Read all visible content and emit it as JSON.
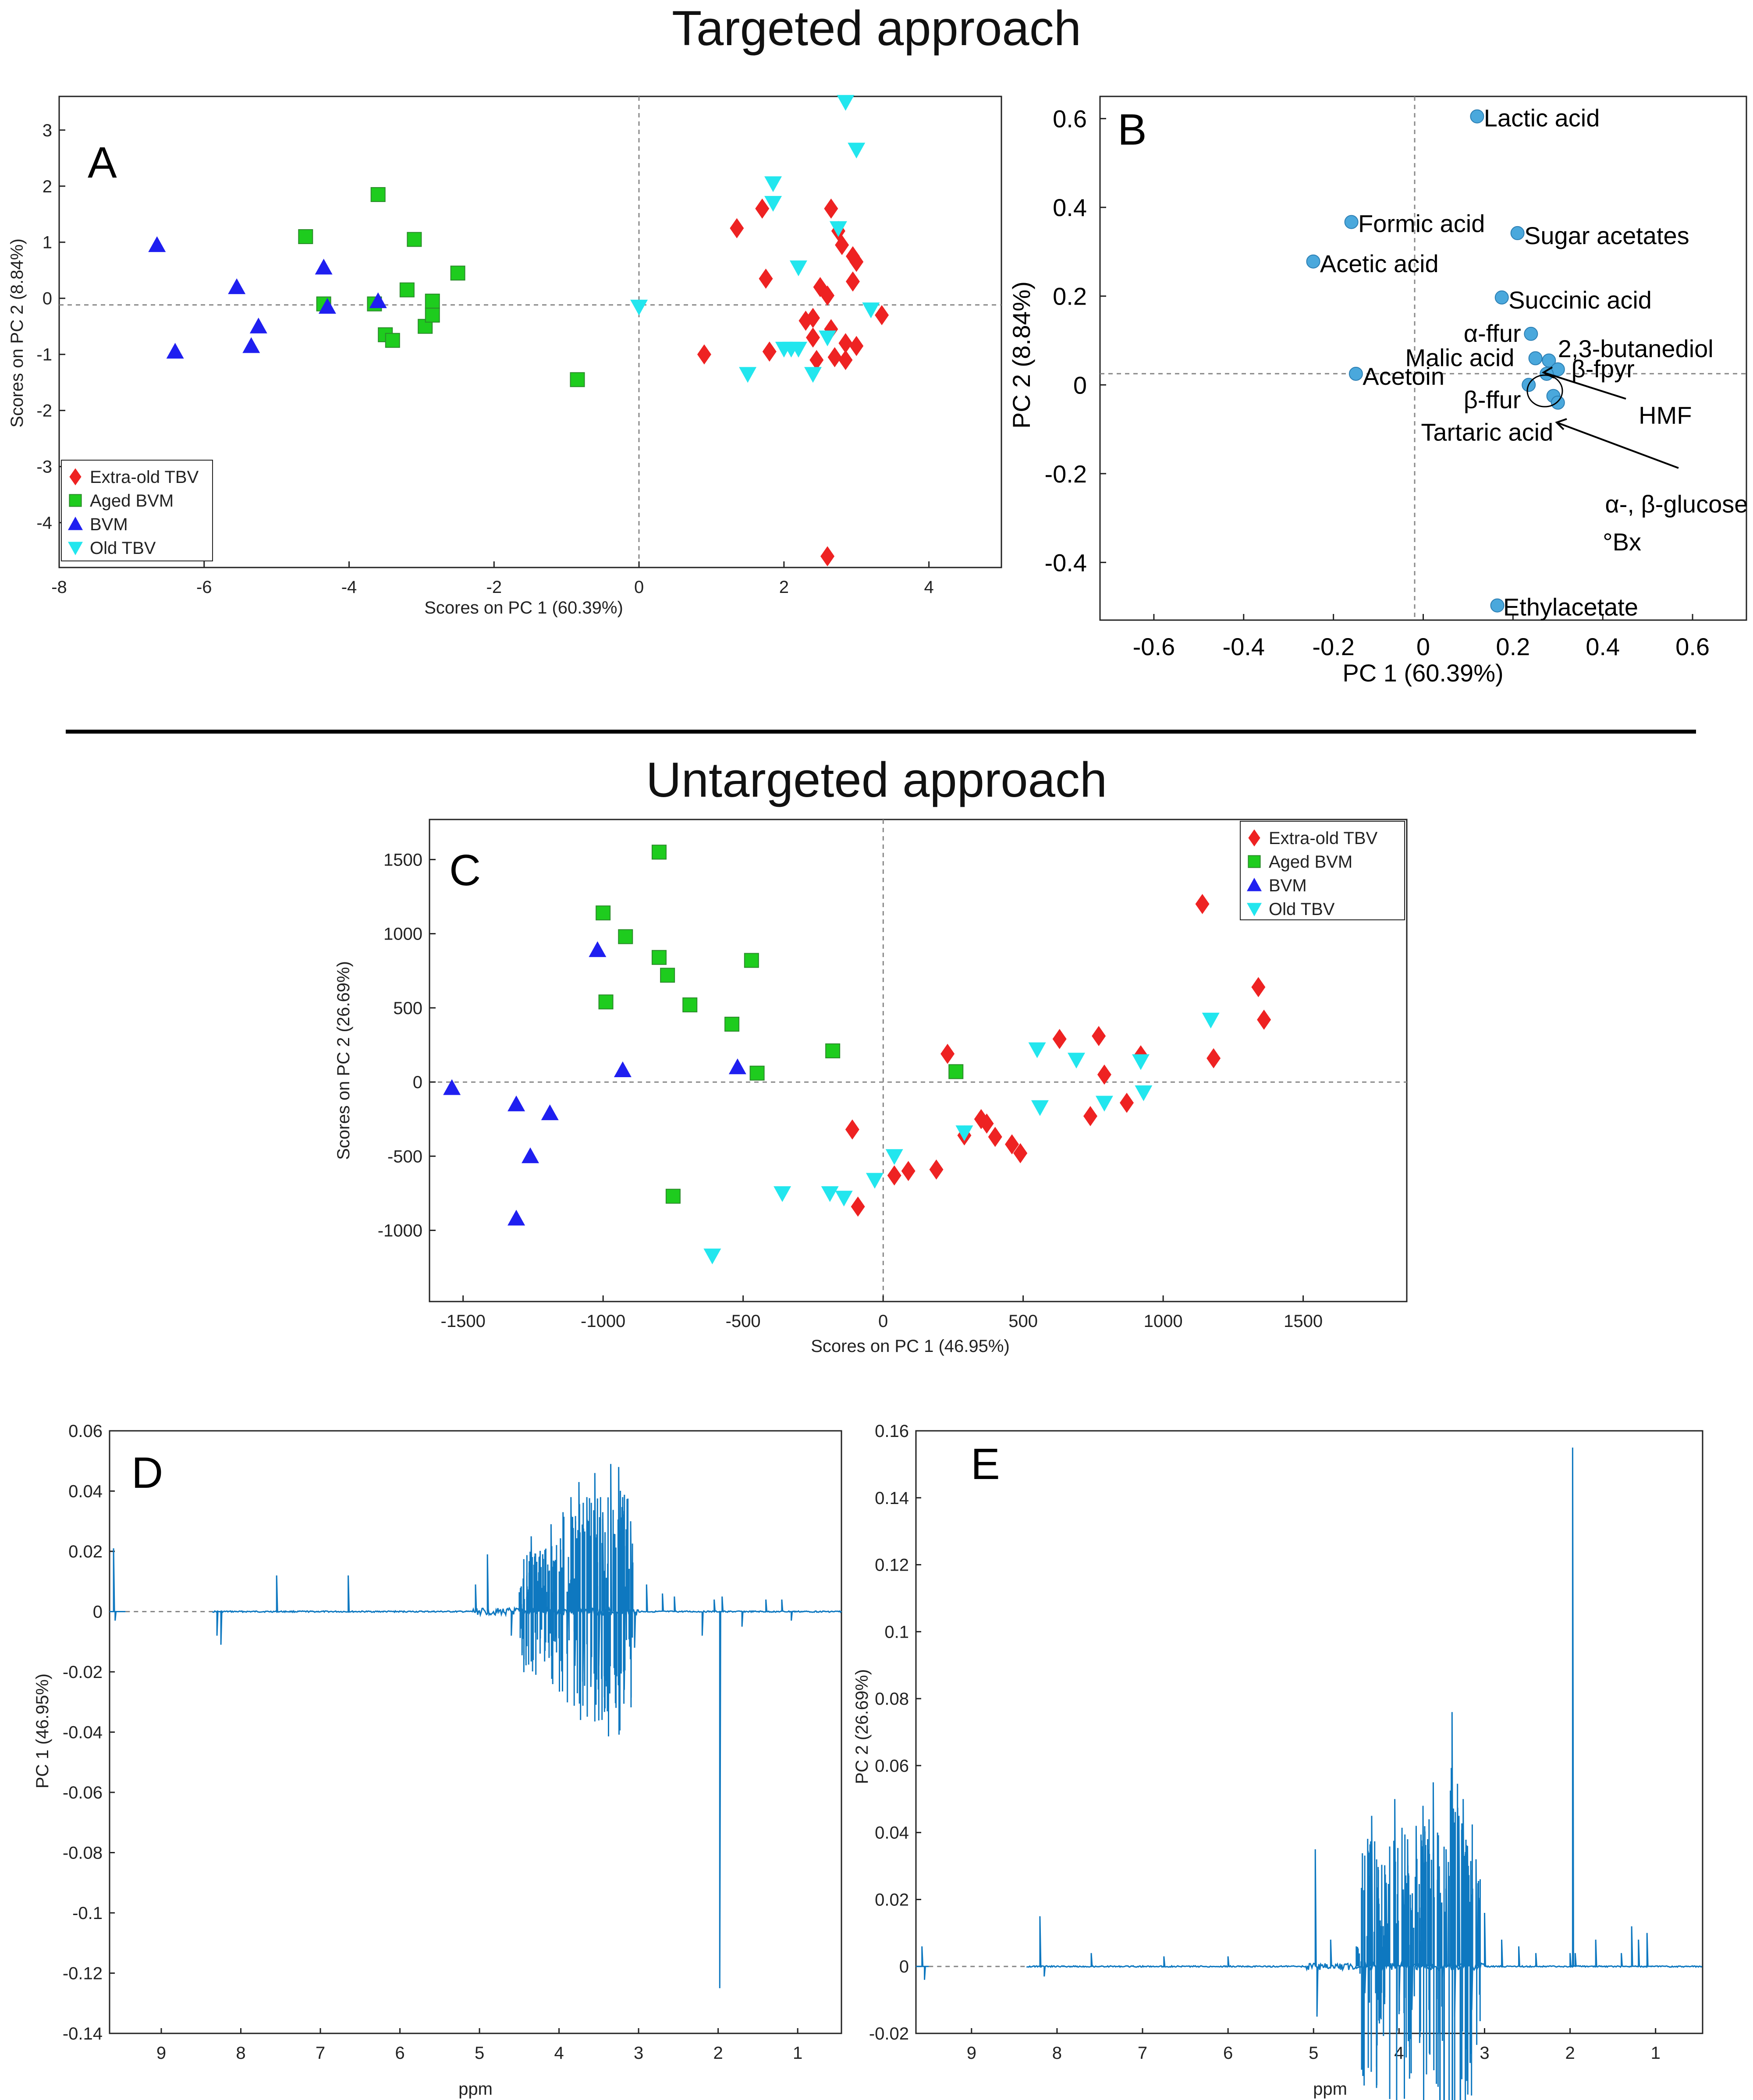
{
  "headings": {
    "targeted": "Targeted approach",
    "untargeted": "Untargeted approach"
  },
  "colors": {
    "extra_old_tbv": "#ee2222",
    "aged_bvm": "#1ecc1e",
    "bvm": "#1f1ff0",
    "old_tbv": "#22e6ee",
    "loading_dot": "#4aa8dc",
    "spectrum": "#0e78c0"
  },
  "chart_data": [
    {
      "id": "A",
      "type": "scatter",
      "panel_label": "A",
      "xlabel": "Scores on PC 1 (60.39%)",
      "ylabel": "Scores on PC 2 (8.84%)",
      "xlim": [
        -8,
        5
      ],
      "ylim": [
        -4.8,
        3.6
      ],
      "xticks": [
        -8,
        -6,
        -4,
        -2,
        0,
        2,
        4
      ],
      "yticks": [
        -4,
        -3,
        -2,
        -1,
        0,
        1,
        2,
        3
      ],
      "zero_lines": true,
      "legend_position": "bottom-left",
      "series": [
        {
          "name": "Extra-old TBV",
          "marker": "diamond",
          "color": "#ee2222",
          "points": [
            [
              0.9,
              -1.0
            ],
            [
              1.35,
              1.25
            ],
            [
              1.7,
              1.6
            ],
            [
              1.75,
              0.35
            ],
            [
              1.8,
              -0.95
            ],
            [
              2.3,
              -0.4
            ],
            [
              2.4,
              -0.35
            ],
            [
              2.4,
              -0.7
            ],
            [
              2.45,
              -1.1
            ],
            [
              2.5,
              0.2
            ],
            [
              2.6,
              0.05
            ],
            [
              2.65,
              1.6
            ],
            [
              2.65,
              -0.55
            ],
            [
              2.7,
              -1.05
            ],
            [
              2.75,
              1.2
            ],
            [
              2.8,
              0.95
            ],
            [
              2.85,
              -0.8
            ],
            [
              2.85,
              -1.1
            ],
            [
              2.95,
              0.3
            ],
            [
              2.95,
              0.75
            ],
            [
              3.0,
              -0.85
            ],
            [
              3.0,
              0.65
            ],
            [
              3.35,
              -0.3
            ],
            [
              2.6,
              -4.6
            ]
          ]
        },
        {
          "name": "Aged BVM",
          "marker": "square",
          "color": "#1ecc1e",
          "points": [
            [
              -4.6,
              1.1
            ],
            [
              -4.35,
              -0.1
            ],
            [
              -3.6,
              1.85
            ],
            [
              -3.65,
              -0.1
            ],
            [
              -3.5,
              -0.65
            ],
            [
              -3.4,
              -0.75
            ],
            [
              -3.2,
              0.15
            ],
            [
              -3.1,
              1.05
            ],
            [
              -2.95,
              -0.5
            ],
            [
              -2.85,
              -0.3
            ],
            [
              -2.85,
              -0.05
            ],
            [
              -2.5,
              0.45
            ],
            [
              -0.85,
              -1.45
            ]
          ]
        },
        {
          "name": "BVM",
          "marker": "triangle-up",
          "color": "#1f1ff0",
          "points": [
            [
              -6.65,
              0.95
            ],
            [
              -6.4,
              -0.95
            ],
            [
              -5.55,
              0.2
            ],
            [
              -5.35,
              -0.85
            ],
            [
              -5.25,
              -0.5
            ],
            [
              -4.35,
              0.55
            ],
            [
              -4.3,
              -0.15
            ],
            [
              -3.6,
              -0.05
            ]
          ]
        },
        {
          "name": "Old TBV",
          "marker": "triangle-down",
          "color": "#22e6ee",
          "points": [
            [
              0.0,
              -0.15
            ],
            [
              1.5,
              -1.35
            ],
            [
              1.85,
              2.05
            ],
            [
              1.85,
              1.7
            ],
            [
              2.0,
              -0.9
            ],
            [
              2.1,
              -0.9
            ],
            [
              2.2,
              0.55
            ],
            [
              2.2,
              -0.9
            ],
            [
              2.4,
              -1.35
            ],
            [
              2.6,
              -0.7
            ],
            [
              2.75,
              1.25
            ],
            [
              2.85,
              3.5
            ],
            [
              3.0,
              2.65
            ],
            [
              3.2,
              -0.2
            ]
          ]
        }
      ]
    },
    {
      "id": "B",
      "type": "scatter",
      "panel_label": "B",
      "xlabel": "PC 1 (60.39%)",
      "ylabel": "PC 2 (8.84%)",
      "xlim": [
        -0.72,
        0.72
      ],
      "ylim": [
        -0.53,
        0.65
      ],
      "xticks": [
        -0.6,
        -0.4,
        -0.2,
        0,
        0.2,
        0.4,
        0.6
      ],
      "yticks": [
        -0.4,
        -0.2,
        0,
        0.2,
        0.4,
        0.6
      ],
      "zero_lines": true,
      "points": [
        [
          0.12,
          0.605
        ],
        [
          -0.16,
          0.367
        ],
        [
          0.21,
          0.342
        ],
        [
          -0.245,
          0.278
        ],
        [
          0.175,
          0.197
        ],
        [
          0.24,
          0.115
        ],
        [
          0.25,
          0.06
        ],
        [
          0.28,
          0.055
        ],
        [
          0.3,
          0.035
        ],
        [
          0.275,
          0.025
        ],
        [
          -0.15,
          0.025
        ],
        [
          0.235,
          0.0
        ],
        [
          0.29,
          -0.025
        ],
        [
          0.3,
          -0.04
        ],
        [
          0.165,
          -0.497
        ]
      ],
      "labels": [
        {
          "text": "Lactic acid",
          "x": 0.135,
          "y": 0.6
        },
        {
          "text": "Formic acid",
          "x": -0.145,
          "y": 0.362
        },
        {
          "text": "Sugar acetates",
          "x": 0.225,
          "y": 0.335
        },
        {
          "text": "Acetic acid",
          "x": -0.23,
          "y": 0.272
        },
        {
          "text": "Succinic acid",
          "x": 0.19,
          "y": 0.19
        },
        {
          "text": "α-ffur",
          "x": 0.09,
          "y": 0.115
        },
        {
          "text": "2,3-butanediol",
          "x": 0.3,
          "y": 0.08
        },
        {
          "text": "Malic acid",
          "x": -0.04,
          "y": 0.06
        },
        {
          "text": "β-fpyr",
          "x": 0.33,
          "y": 0.035
        },
        {
          "text": "Acetoin",
          "x": -0.135,
          "y": 0.018
        },
        {
          "text": "β-ffur",
          "x": 0.09,
          "y": -0.035
        },
        {
          "text": "HMF",
          "x": 0.48,
          "y": -0.07
        },
        {
          "text": "Tartaric acid",
          "x": -0.005,
          "y": -0.108
        },
        {
          "text": "α-, β-glucose",
          "x": 0.405,
          "y": -0.27
        },
        {
          "text": "°Bx",
          "x": 0.4,
          "y": -0.355
        },
        {
          "text": "Ethylacetate",
          "x": 0.178,
          "y": -0.502
        }
      ]
    },
    {
      "id": "C",
      "type": "scatter",
      "panel_label": "C",
      "xlabel": "Scores on PC 1 (46.95%)",
      "ylabel": "Scores on PC 2 (26.69%)",
      "xlim": [
        -1620,
        1870
      ],
      "ylim": [
        -1480,
        1770
      ],
      "xticks": [
        -1500,
        -1000,
        -500,
        0,
        500,
        1000,
        1500
      ],
      "yticks": [
        -1000,
        -500,
        0,
        500,
        1000,
        1500
      ],
      "zero_lines": true,
      "legend_position": "top-right",
      "series": [
        {
          "name": "Extra-old TBV",
          "marker": "diamond",
          "color": "#ee2222",
          "points": [
            [
              -110,
              -320
            ],
            [
              -90,
              -840
            ],
            [
              40,
              -630
            ],
            [
              90,
              -600
            ],
            [
              190,
              -590
            ],
            [
              230,
              190
            ],
            [
              290,
              -360
            ],
            [
              350,
              -250
            ],
            [
              370,
              -280
            ],
            [
              400,
              -370
            ],
            [
              460,
              -420
            ],
            [
              490,
              -480
            ],
            [
              630,
              290
            ],
            [
              740,
              -230
            ],
            [
              770,
              310
            ],
            [
              790,
              50
            ],
            [
              870,
              -140
            ],
            [
              920,
              180
            ],
            [
              1140,
              1200
            ],
            [
              1180,
              160
            ],
            [
              1340,
              640
            ],
            [
              1360,
              420
            ]
          ]
        },
        {
          "name": "Aged BVM",
          "marker": "square",
          "color": "#1ecc1e",
          "points": [
            [
              -1000,
              1140
            ],
            [
              -990,
              540
            ],
            [
              -920,
              980
            ],
            [
              -800,
              1550
            ],
            [
              -800,
              840
            ],
            [
              -770,
              720
            ],
            [
              -690,
              520
            ],
            [
              -540,
              390
            ],
            [
              -470,
              820
            ],
            [
              -450,
              60
            ],
            [
              -180,
              210
            ],
            [
              260,
              70
            ],
            [
              -750,
              -770
            ]
          ]
        },
        {
          "name": "BVM",
          "marker": "triangle-up",
          "color": "#1f1ff0",
          "points": [
            [
              -1540,
              -40
            ],
            [
              -1310,
              -150
            ],
            [
              -1310,
              -920
            ],
            [
              -1260,
              -500
            ],
            [
              -1190,
              -210
            ],
            [
              -1020,
              890
            ],
            [
              -930,
              80
            ],
            [
              -520,
              100
            ]
          ]
        },
        {
          "name": "Old TBV",
          "marker": "triangle-down",
          "color": "#22e6ee",
          "points": [
            [
              -610,
              -1170
            ],
            [
              -360,
              -750
            ],
            [
              -190,
              -750
            ],
            [
              -140,
              -780
            ],
            [
              -30,
              -660
            ],
            [
              40,
              -500
            ],
            [
              290,
              -340
            ],
            [
              550,
              220
            ],
            [
              560,
              -170
            ],
            [
              690,
              150
            ],
            [
              790,
              -140
            ],
            [
              920,
              140
            ],
            [
              930,
              -70
            ],
            [
              1170,
              420
            ]
          ]
        }
      ]
    },
    {
      "id": "D",
      "type": "line",
      "panel_label": "D",
      "xlabel": "ppm",
      "ylabel": "PC 1 (46.95%)",
      "xlim": [
        9.65,
        0.45
      ],
      "ylim": [
        -0.14,
        0.06
      ],
      "xticks": [
        9,
        8,
        7,
        6,
        5,
        4,
        3,
        2,
        1
      ],
      "yticks": [
        0.06,
        0.04,
        0.02,
        0,
        -0.02,
        -0.04,
        -0.06,
        -0.08,
        -0.1,
        -0.12,
        -0.14
      ],
      "baseline_dashed_range": [
        9.45,
        8.35
      ],
      "peaks": [
        [
          9.6,
          0.021
        ],
        [
          9.58,
          -0.003
        ],
        [
          8.3,
          -0.008
        ],
        [
          8.25,
          -0.011
        ],
        [
          7.55,
          0.012
        ],
        [
          6.65,
          0.012
        ],
        [
          5.05,
          0.009
        ],
        [
          4.9,
          0.019
        ],
        [
          4.6,
          -0.008
        ],
        [
          4.45,
          0.011
        ],
        [
          4.35,
          0.025
        ],
        [
          4.25,
          0.018
        ],
        [
          4.1,
          0.029
        ],
        [
          4.05,
          -0.01
        ],
        [
          3.95,
          0.033
        ],
        [
          3.9,
          -0.014
        ],
        [
          3.85,
          0.038
        ],
        [
          3.8,
          -0.018
        ],
        [
          3.75,
          0.043
        ],
        [
          3.7,
          -0.021
        ],
        [
          3.65,
          0.038
        ],
        [
          3.6,
          -0.025
        ],
        [
          3.55,
          0.046
        ],
        [
          3.5,
          -0.018
        ],
        [
          3.45,
          0.033
        ],
        [
          3.42,
          -0.023
        ],
        [
          3.35,
          0.049
        ],
        [
          3.3,
          -0.021
        ],
        [
          3.25,
          0.048
        ],
        [
          3.2,
          0.038
        ],
        [
          3.18,
          -0.026
        ],
        [
          3.1,
          0.03
        ],
        [
          3.05,
          -0.012
        ],
        [
          2.9,
          0.009
        ],
        [
          2.7,
          0.006
        ],
        [
          2.55,
          0.005
        ],
        [
          2.2,
          -0.008
        ],
        [
          2.05,
          0.004
        ],
        [
          1.98,
          -0.125
        ],
        [
          1.95,
          0.005
        ],
        [
          1.7,
          -0.005
        ],
        [
          1.4,
          0.004
        ],
        [
          1.2,
          0.004
        ],
        [
          1.08,
          -0.003
        ]
      ]
    },
    {
      "id": "E",
      "type": "line",
      "panel_label": "E",
      "xlabel": "ppm",
      "ylabel": "PC 2 (26.69%)",
      "xlim": [
        9.65,
        0.45
      ],
      "ylim": [
        -0.02,
        0.16
      ],
      "xticks": [
        9,
        8,
        7,
        6,
        5,
        4,
        3,
        2,
        1
      ],
      "yticks": [
        0.16,
        0.14,
        0.12,
        0.1,
        0.08,
        0.06,
        0.04,
        0.02,
        0,
        -0.02
      ],
      "baseline_dashed_range": [
        9.5,
        8.35
      ],
      "peaks": [
        [
          9.58,
          0.006
        ],
        [
          9.55,
          -0.004
        ],
        [
          8.2,
          0.015
        ],
        [
          8.15,
          -0.003
        ],
        [
          7.6,
          0.004
        ],
        [
          6.75,
          0.003
        ],
        [
          6.0,
          0.003
        ],
        [
          4.98,
          0.035
        ],
        [
          4.96,
          -0.015
        ],
        [
          4.8,
          0.008
        ],
        [
          4.5,
          0.006
        ],
        [
          4.4,
          -0.008
        ],
        [
          4.32,
          0.045
        ],
        [
          4.25,
          -0.01
        ],
        [
          4.15,
          0.025
        ],
        [
          4.05,
          0.05
        ],
        [
          4.0,
          -0.012
        ],
        [
          3.95,
          0.023
        ],
        [
          3.9,
          0.038
        ],
        [
          3.85,
          -0.013
        ],
        [
          3.8,
          0.042
        ],
        [
          3.72,
          0.048
        ],
        [
          3.65,
          -0.013
        ],
        [
          3.6,
          0.055
        ],
        [
          3.55,
          0.04
        ],
        [
          3.5,
          -0.012
        ],
        [
          3.45,
          0.035
        ],
        [
          3.38,
          0.076
        ],
        [
          3.35,
          -0.015
        ],
        [
          3.3,
          0.045
        ],
        [
          3.25,
          0.05
        ],
        [
          3.2,
          0.036
        ],
        [
          3.15,
          -0.013
        ],
        [
          3.1,
          0.032
        ],
        [
          3.0,
          0.016
        ],
        [
          2.8,
          0.008
        ],
        [
          2.6,
          0.006
        ],
        [
          2.4,
          0.004
        ],
        [
          2.0,
          0.004
        ],
        [
          1.97,
          0.155
        ],
        [
          1.94,
          0.004
        ],
        [
          1.7,
          0.008
        ],
        [
          1.4,
          0.004
        ],
        [
          1.28,
          0.012
        ],
        [
          1.2,
          0.008
        ],
        [
          1.1,
          0.01
        ]
      ]
    }
  ]
}
